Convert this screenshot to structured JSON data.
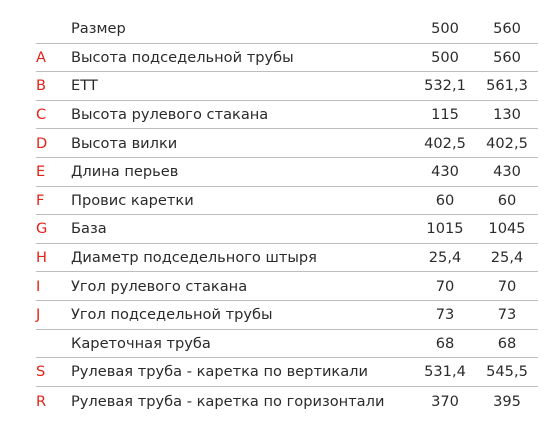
{
  "table": {
    "header": {
      "letter": "",
      "label": "Размер",
      "sizes": [
        "500",
        "560"
      ]
    },
    "rows": [
      {
        "letter": "A",
        "label": "Высота подседельной трубы",
        "values": [
          "500",
          "560"
        ]
      },
      {
        "letter": "B",
        "label": "ETT",
        "values": [
          "532,1",
          "561,3"
        ]
      },
      {
        "letter": "C",
        "label": "Высота рулевого стакана",
        "values": [
          "115",
          "130"
        ]
      },
      {
        "letter": "D",
        "label": "Высота вилки",
        "values": [
          "402,5",
          "402,5"
        ]
      },
      {
        "letter": "E",
        "label": "Длина перьев",
        "values": [
          "430",
          "430"
        ]
      },
      {
        "letter": "F",
        "label": "Провис каретки",
        "values": [
          "60",
          "60"
        ]
      },
      {
        "letter": "G",
        "label": "База",
        "values": [
          "1015",
          "1045"
        ]
      },
      {
        "letter": "H",
        "label": "Диаметр подседельного штыря",
        "values": [
          "25,4",
          "25,4"
        ]
      },
      {
        "letter": "I",
        "label": "Угол рулевого стакана",
        "values": [
          "70",
          "70"
        ]
      },
      {
        "letter": "J",
        "label": "Угол подседельной трубы",
        "values": [
          "73",
          "73"
        ]
      },
      {
        "letter": "",
        "label": "Кареточная труба",
        "values": [
          "68",
          "68"
        ]
      },
      {
        "letter": "S",
        "label": "Рулевая труба - каретка по вертикали",
        "values": [
          "531,4",
          "545,5"
        ]
      },
      {
        "letter": "R",
        "label": "Рулевая труба - каретка по горизонтали",
        "values": [
          "370",
          "395"
        ]
      }
    ],
    "colors": {
      "letter": "#e2231a",
      "text": "#2b2b2b",
      "divider": "#bdbdbd"
    }
  }
}
